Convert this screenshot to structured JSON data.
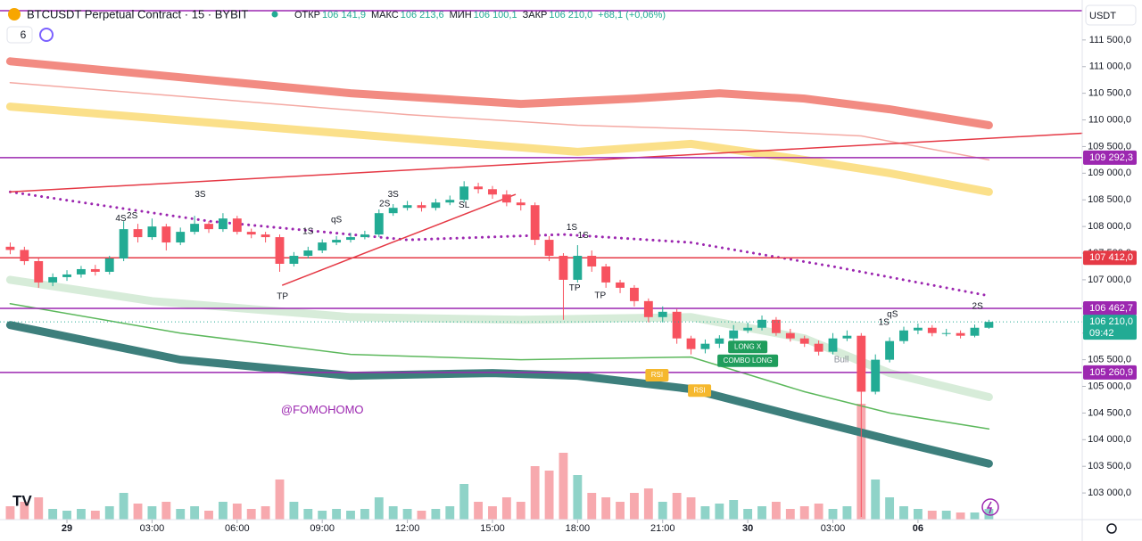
{
  "chart_data": {
    "type": "candlestick",
    "title": "BTCUSDT Perpetual Contract · 15 · BYBIT",
    "indicator_count": "6",
    "quote": [
      {
        "label": "ОТКР",
        "value": "106 141,9"
      },
      {
        "label": "МАКС",
        "value": "106 213,6"
      },
      {
        "label": "МИН",
        "value": "106 100,1"
      },
      {
        "label": "ЗАКР",
        "value": "106 210,0"
      }
    ],
    "change": "+68,1 (+0,06%)",
    "currency": "USDT",
    "colors": {
      "up": "#22ab94",
      "down": "#f7525f",
      "up_volume": "#8fd3c8",
      "down_volume": "#f7a9ae"
    },
    "xlim": [
      -2.36,
      35.79
    ],
    "xticks": [
      {
        "value": 0,
        "label": "29"
      },
      {
        "value": 3,
        "label": "03:00"
      },
      {
        "value": 6,
        "label": "06:00"
      },
      {
        "value": 9,
        "label": "09:00"
      },
      {
        "value": 12,
        "label": "12:00"
      },
      {
        "value": 15,
        "label": "15:00"
      },
      {
        "value": 18,
        "label": "18:00"
      },
      {
        "value": 21,
        "label": "21:00"
      },
      {
        "value": 24,
        "label": "30"
      },
      {
        "value": 27,
        "label": "03:00"
      },
      {
        "value": 30,
        "label": "06"
      }
    ],
    "ylim": [
      102500,
      112250
    ],
    "yticks": [
      {
        "value": 111500,
        "label": "111 500,0"
      },
      {
        "value": 111000,
        "label": "111 000,0"
      },
      {
        "value": 110500,
        "label": "110 500,0"
      },
      {
        "value": 110000,
        "label": "110 000,0"
      },
      {
        "value": 109500,
        "label": "109 500,0"
      },
      {
        "value": 109000,
        "label": "109 000,0"
      },
      {
        "value": 108500,
        "label": "108 500,0"
      },
      {
        "value": 108000,
        "label": "108 000,0"
      },
      {
        "value": 107500,
        "label": "107 500,0"
      },
      {
        "value": 107000,
        "label": "107 000,0"
      },
      {
        "value": 106500,
        "label": "106 500,0"
      },
      {
        "value": 106000,
        "label": "106 000,0"
      },
      {
        "value": 105500,
        "label": "105 500,0"
      },
      {
        "value": 105000,
        "label": "105 000,0"
      },
      {
        "value": 104500,
        "label": "104 500,0"
      },
      {
        "value": 104000,
        "label": "104 000,0"
      },
      {
        "value": 103500,
        "label": "103 500,0"
      },
      {
        "value": 103000,
        "label": "103 000,0"
      }
    ],
    "x": [
      -2,
      -1.5,
      -1,
      -0.5,
      0,
      0.5,
      1,
      1.5,
      2,
      2.5,
      3,
      3.5,
      4,
      4.5,
      5,
      5.5,
      6,
      6.5,
      7,
      7.5,
      8,
      8.5,
      9,
      9.5,
      10,
      10.5,
      11,
      11.5,
      12,
      12.5,
      13,
      13.5,
      14,
      14.5,
      15,
      15.5,
      16,
      16.5,
      17,
      17.5,
      18,
      18.5,
      19,
      19.5,
      20,
      20.5,
      21,
      21.5,
      22,
      22.5,
      23,
      23.5,
      24,
      24.5,
      25,
      25.5,
      26,
      26.5,
      27,
      27.5,
      28,
      28.5,
      29,
      29.5,
      30,
      30.5,
      31,
      31.5,
      32,
      32.5
    ],
    "open": [
      107620,
      107560,
      107350,
      106950,
      107050,
      107100,
      107200,
      107150,
      107400,
      107950,
      107800,
      108000,
      107700,
      107900,
      108050,
      107950,
      108150,
      107900,
      107850,
      107800,
      107300,
      107450,
      107550,
      107700,
      107750,
      107800,
      107850,
      108250,
      108350,
      108400,
      108350,
      108450,
      108500,
      108750,
      108700,
      108600,
      108450,
      108400,
      107750,
      107450,
      107000,
      107450,
      107250,
      106950,
      106850,
      106600,
      106300,
      106400,
      105900,
      105700,
      105800,
      105900,
      106050,
      106100,
      106250,
      106000,
      105900,
      105800,
      105650,
      105900,
      105950,
      104900,
      105500,
      105850,
      106050,
      106100,
      106000,
      106000,
      105950,
      106100
    ],
    "high": [
      107700,
      107620,
      107400,
      107120,
      107180,
      107260,
      107280,
      107450,
      108100,
      108050,
      108150,
      108050,
      107980,
      108200,
      108100,
      108250,
      108200,
      107960,
      107900,
      107850,
      107520,
      107620,
      107760,
      107820,
      107880,
      107920,
      108320,
      108420,
      108480,
      108460,
      108520,
      108580,
      108850,
      108820,
      108760,
      108680,
      108520,
      108450,
      107820,
      107500,
      107650,
      107550,
      107300,
      107000,
      106900,
      106650,
      106500,
      106450,
      105950,
      105880,
      105960,
      106150,
      106200,
      106330,
      106300,
      106080,
      105950,
      105860,
      106000,
      106050,
      106000,
      105600,
      105920,
      106120,
      106180,
      106150,
      106080,
      106050,
      106160,
      106250
    ],
    "low": [
      107480,
      107280,
      106850,
      106880,
      106980,
      107040,
      107080,
      107100,
      107350,
      107700,
      107750,
      107550,
      107650,
      107850,
      107880,
      107900,
      107850,
      107780,
      107700,
      107150,
      107250,
      107400,
      107500,
      107650,
      107700,
      107760,
      107800,
      108200,
      108300,
      108280,
      108300,
      108400,
      108450,
      108620,
      108520,
      108380,
      108300,
      107650,
      107350,
      106250,
      106950,
      107150,
      106850,
      106750,
      106500,
      106200,
      106200,
      105800,
      105600,
      105620,
      105720,
      105850,
      106000,
      106050,
      105950,
      105840,
      105740,
      105580,
      105600,
      105850,
      102550,
      104850,
      105450,
      105800,
      105980,
      105940,
      105940,
      105900,
      105920,
      106080
    ],
    "close": [
      107560,
      107350,
      106950,
      107050,
      107100,
      107200,
      107150,
      107400,
      107950,
      107800,
      108000,
      107700,
      107900,
      108050,
      107950,
      108150,
      107900,
      107850,
      107800,
      107300,
      107450,
      107550,
      107700,
      107750,
      107800,
      107850,
      108250,
      108350,
      108400,
      108350,
      108450,
      108500,
      108750,
      108700,
      108600,
      108450,
      108400,
      107750,
      107450,
      107000,
      107450,
      107250,
      106950,
      106850,
      106600,
      106300,
      106400,
      105900,
      105700,
      105800,
      105900,
      106050,
      106100,
      106250,
      106000,
      105900,
      105800,
      105650,
      105900,
      105950,
      104900,
      105500,
      105850,
      106050,
      106100,
      106000,
      106000,
      105950,
      106100,
      106210
    ],
    "volume": [
      15,
      20,
      25,
      12,
      10,
      12,
      10,
      15,
      30,
      18,
      15,
      20,
      12,
      15,
      10,
      20,
      18,
      12,
      15,
      45,
      20,
      12,
      10,
      12,
      10,
      12,
      25,
      15,
      12,
      10,
      12,
      15,
      40,
      20,
      15,
      25,
      20,
      60,
      55,
      75,
      50,
      30,
      25,
      20,
      30,
      35,
      20,
      30,
      25,
      15,
      18,
      22,
      12,
      15,
      20,
      12,
      15,
      18,
      12,
      15,
      130,
      45,
      25,
      15,
      12,
      10,
      10,
      8,
      8,
      12
    ],
    "overlays": [
      {
        "color": "#f28b82",
        "style": "thick",
        "x": [
          -2,
          5,
          10,
          16,
          20,
          23,
          26,
          29,
          32.5
        ],
        "y": [
          111100,
          110750,
          110500,
          110300,
          110400,
          110500,
          110400,
          110200,
          109900
        ]
      },
      {
        "color": "#f4a9a3",
        "style": "thin",
        "x": [
          -2,
          5,
          12,
          18,
          24,
          28,
          32.5
        ],
        "y": [
          110700,
          110400,
          110100,
          109900,
          109800,
          109700,
          109250
        ]
      },
      {
        "color": "#fbe08a",
        "style": "thick",
        "x": [
          -2,
          5,
          12,
          18,
          22,
          26,
          29,
          32.5
        ],
        "y": [
          110250,
          109950,
          109650,
          109400,
          109550,
          109250,
          109000,
          108650
        ]
      },
      {
        "color": "#d7ecd9",
        "style": "thick",
        "x": [
          -2,
          3,
          10,
          16,
          22,
          26,
          29,
          32.5
        ],
        "y": [
          107000,
          106600,
          106300,
          106250,
          106300,
          105900,
          105250,
          104800
        ]
      },
      {
        "color": "#5cb85c",
        "style": "thin",
        "x": [
          -2,
          4,
          10,
          16,
          22,
          26,
          29,
          32.5
        ],
        "y": [
          106550,
          106000,
          105600,
          105500,
          105550,
          104900,
          104500,
          104200
        ]
      },
      {
        "color": "#3d7f7c",
        "style": "thick",
        "x": [
          -2,
          4,
          10,
          15,
          18,
          22,
          26,
          29,
          32.5
        ],
        "y": [
          106150,
          105500,
          105200,
          105250,
          105200,
          104950,
          104400,
          104000,
          103550
        ]
      },
      {
        "color": "#9c27b0",
        "style": "dotted",
        "x": [
          -2,
          5,
          12,
          17.5,
          22,
          27,
          32.5
        ],
        "y": [
          108650,
          108100,
          107750,
          107850,
          107700,
          107250,
          106700
        ]
      },
      {
        "color": "#e53945",
        "style": "thin",
        "x": [
          -2,
          35.79
        ],
        "y": [
          108650,
          109750
        ]
      },
      {
        "color": "#e53945",
        "style": "thin",
        "x": [
          7.6,
          15.8
        ],
        "y": [
          106900,
          108600
        ]
      }
    ],
    "levels": [
      {
        "value": 112050,
        "color": "#9c27b0"
      },
      {
        "value": 109292.3,
        "label": "109 292,3",
        "color": "#9c27b0"
      },
      {
        "value": 107412.0,
        "label": "107 412,0",
        "color": "#e53945"
      },
      {
        "value": 106462.7,
        "label": "106 462,7",
        "color": "#9c27b0"
      },
      {
        "value": 105260.9,
        "label": "105 260,9",
        "color": "#9c27b0"
      }
    ],
    "last": {
      "value": 106210.0,
      "label": "106 210,0",
      "countdown": "09:42",
      "color": "#22ab94"
    },
    "annotations": [
      {
        "text": "4S",
        "x": 1.9,
        "y": 108150,
        "style": "signal"
      },
      {
        "text": "2S",
        "x": 2.3,
        "y": 108200,
        "style": "signal"
      },
      {
        "text": "3S",
        "x": 4.7,
        "y": 108600,
        "style": "signal"
      },
      {
        "text": "1S",
        "x": 8.5,
        "y": 107900,
        "style": "signal"
      },
      {
        "text": "qS",
        "x": 9.5,
        "y": 108120,
        "style": "signal"
      },
      {
        "text": "2S",
        "x": 11.2,
        "y": 108420,
        "style": "signal"
      },
      {
        "text": "3S",
        "x": 11.5,
        "y": 108600,
        "style": "signal"
      },
      {
        "text": "SL",
        "x": 14.0,
        "y": 108400,
        "style": "signal"
      },
      {
        "text": "TP",
        "x": 7.6,
        "y": 106680,
        "style": "signal"
      },
      {
        "text": "1S",
        "x": 17.8,
        "y": 107980,
        "style": "signal"
      },
      {
        "text": "1S",
        "x": 18.2,
        "y": 107830,
        "style": "signal"
      },
      {
        "text": "TP",
        "x": 17.9,
        "y": 106840,
        "style": "signal"
      },
      {
        "text": "TP",
        "x": 18.8,
        "y": 106700,
        "style": "signal"
      },
      {
        "text": "1S",
        "x": 28.8,
        "y": 106200,
        "style": "signal"
      },
      {
        "text": "qS",
        "x": 29.1,
        "y": 106350,
        "style": "signal"
      },
      {
        "text": "2S",
        "x": 32.1,
        "y": 106500,
        "style": "signal"
      },
      {
        "text": "RSI",
        "x": 20.8,
        "y": 105210,
        "style": "tag-yellow"
      },
      {
        "text": "RSI",
        "x": 22.3,
        "y": 104920,
        "style": "tag-yellow"
      },
      {
        "text": "LONG X",
        "x": 24.0,
        "y": 105740,
        "style": "tag-green"
      },
      {
        "text": "COMBO LONG",
        "x": 24.0,
        "y": 105480,
        "style": "tag-green"
      },
      {
        "text": "Bull",
        "x": 27.3,
        "y": 105500,
        "style": "muted"
      },
      {
        "text": "@FOMOHOMO",
        "x": 9.0,
        "y": 104550,
        "style": "watermark"
      }
    ]
  }
}
